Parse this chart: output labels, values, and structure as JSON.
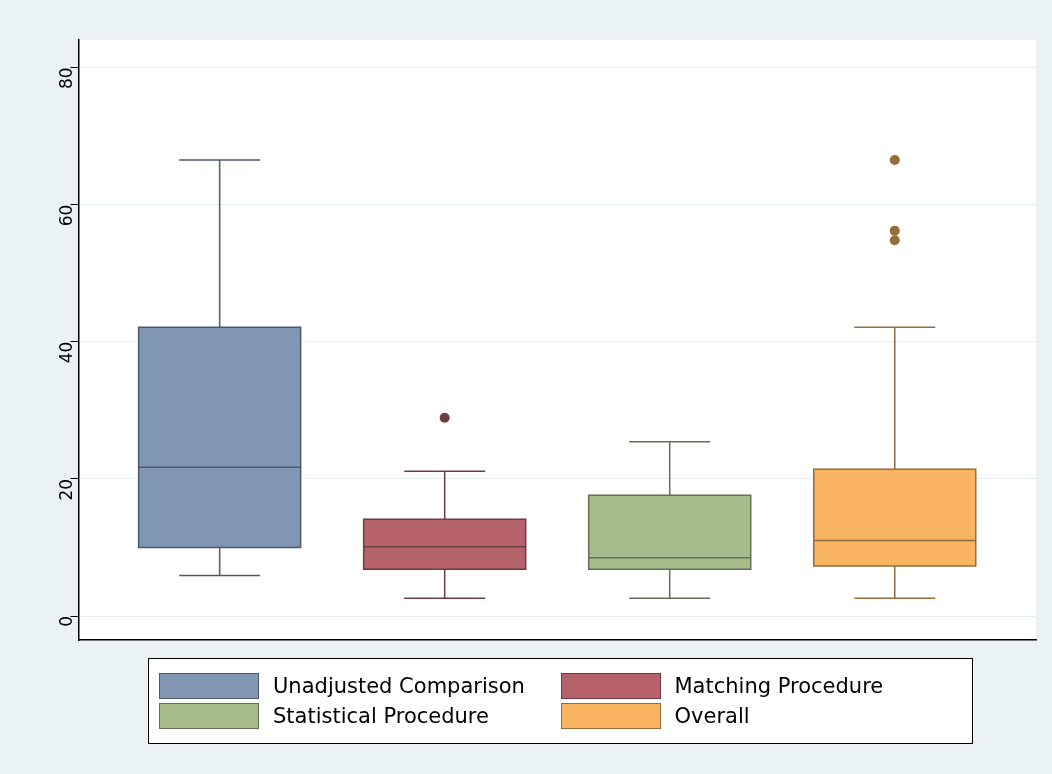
{
  "chart_data": {
    "type": "box",
    "categories": [
      null
    ],
    "ylim": [
      -3.5,
      84
    ],
    "yticks": [
      0,
      20,
      40,
      60,
      80
    ],
    "grid": "y",
    "legend": "bottom",
    "series": [
      {
        "name": "Unadjusted Comparison",
        "color": "#8096b4",
        "boxes": [
          {
            "low": 5.9,
            "q1": 10,
            "median": 21.7,
            "q3": 42.1,
            "high": 66.5
          }
        ]
      },
      {
        "name": "Matching Procedure",
        "color": "#b5626a",
        "boxes": [
          {
            "low": 2.6,
            "q1": 6.8,
            "median": 10.1,
            "q3": 14.1,
            "high": 21.1,
            "outliers": [
              28.9
            ]
          }
        ]
      },
      {
        "name": "Statistical Procedure",
        "color": "#a6bb8a",
        "boxes": [
          {
            "low": 2.6,
            "q1": 6.8,
            "median": 8.5,
            "q3": 17.6,
            "high": 25.4
          }
        ]
      },
      {
        "name": "Overall",
        "color": "#f8b460",
        "boxes": [
          {
            "low": 2.6,
            "q1": 7.3,
            "median": 11,
            "q3": 21.4,
            "high": 42.1,
            "outliers": [
              54.8,
              56.2,
              66.5
            ]
          }
        ]
      }
    ]
  }
}
